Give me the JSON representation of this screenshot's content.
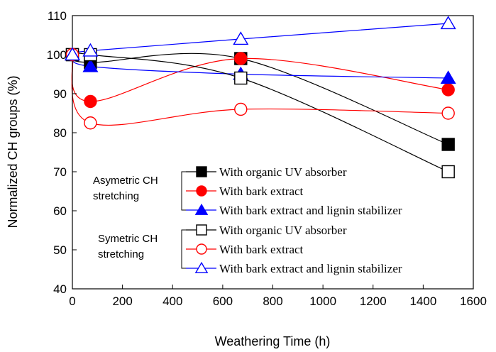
{
  "chart_data": {
    "type": "line",
    "xlabel": "Weathering Time (h)",
    "ylabel": "Normalized CH groups (%)",
    "xlim": [
      0,
      1600
    ],
    "ylim": [
      40,
      110
    ],
    "xticks": [
      0,
      200,
      400,
      600,
      800,
      1000,
      1200,
      1400,
      1600
    ],
    "yticks": [
      40,
      50,
      60,
      70,
      80,
      90,
      100,
      110
    ],
    "grid": false,
    "legend_placement": "bottom-right",
    "legend_groups": [
      {
        "label_lines": [
          "Asymetric CH",
          "stretching"
        ]
      },
      {
        "label_lines": [
          "Symetric CH",
          "stretching"
        ]
      }
    ],
    "series": [
      {
        "name": "With organic UV absorber",
        "group": 0,
        "color": "#000000",
        "marker": "square",
        "filled": true,
        "x": [
          0,
          72,
          672,
          1500
        ],
        "y": [
          100,
          98,
          99,
          77
        ]
      },
      {
        "name": "With bark extract",
        "group": 0,
        "color": "#ff0000",
        "marker": "circle",
        "filled": true,
        "x": [
          0,
          72,
          672,
          1500
        ],
        "y": [
          100,
          88,
          99,
          91
        ]
      },
      {
        "name": "With bark extract and lignin stabilizer",
        "group": 0,
        "color": "#0000ff",
        "marker": "triangle",
        "filled": true,
        "x": [
          0,
          72,
          672,
          1500
        ],
        "y": [
          100,
          97,
          95,
          94
        ]
      },
      {
        "name": "With organic UV absorber",
        "group": 1,
        "color": "#000000",
        "marker": "square",
        "filled": false,
        "x": [
          0,
          72,
          672,
          1500
        ],
        "y": [
          100,
          100,
          94,
          70
        ]
      },
      {
        "name": "With bark extract",
        "group": 1,
        "color": "#ff0000",
        "marker": "circle",
        "filled": false,
        "x": [
          0,
          72,
          672,
          1500
        ],
        "y": [
          100,
          82.5,
          86,
          85
        ]
      },
      {
        "name": "With bark extract and lignin stabilizer",
        "group": 1,
        "color": "#0000ff",
        "marker": "triangle",
        "filled": false,
        "x": [
          0,
          72,
          672,
          1500
        ],
        "y": [
          100,
          101,
          104,
          108
        ]
      }
    ]
  }
}
